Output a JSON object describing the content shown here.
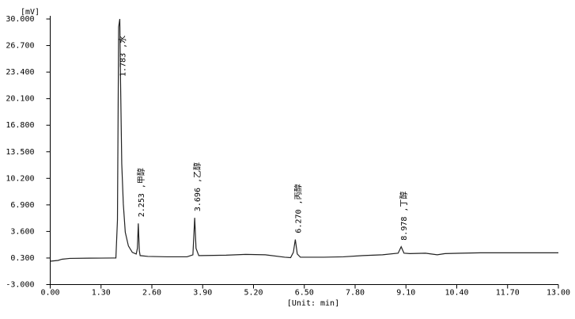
{
  "chart_data": {
    "type": "line",
    "y_label": "[mV]",
    "x_label": "[Unit: min]",
    "color": "#222222",
    "xlim": [
      0,
      13
    ],
    "ylim": [
      -3,
      30
    ],
    "xticks": [
      {
        "value": 0,
        "label": "0.00"
      },
      {
        "value": 1.3,
        "label": "1.30"
      },
      {
        "value": 2.6,
        "label": "2.60"
      },
      {
        "value": 3.9,
        "label": "3.90"
      },
      {
        "value": 5.2,
        "label": "5.20"
      },
      {
        "value": 6.5,
        "label": "6.50"
      },
      {
        "value": 7.8,
        "label": "7.80"
      },
      {
        "value": 9.1,
        "label": "9.10"
      },
      {
        "value": 10.4,
        "label": "10.40"
      },
      {
        "value": 11.7,
        "label": "11.70"
      },
      {
        "value": 13,
        "label": "13.00"
      }
    ],
    "yticks": [
      {
        "value": -3,
        "label": "-3.000"
      },
      {
        "value": 0.3,
        "label": "0.300"
      },
      {
        "value": 3.6,
        "label": "3.600"
      },
      {
        "value": 6.9,
        "label": "6.900"
      },
      {
        "value": 10.2,
        "label": "10.200"
      },
      {
        "value": 13.5,
        "label": "13.500"
      },
      {
        "value": 16.8,
        "label": "16.800"
      },
      {
        "value": 20.1,
        "label": "20.100"
      },
      {
        "value": 23.4,
        "label": "23.400"
      },
      {
        "value": 26.7,
        "label": "26.700"
      },
      {
        "value": 30,
        "label": "30.000"
      }
    ],
    "x": [
      0,
      0.2,
      0.3,
      0.5,
      1.0,
      1.6,
      1.68,
      1.72,
      1.75,
      1.78,
      1.8,
      1.83,
      1.87,
      1.92,
      2.0,
      2.1,
      2.2,
      2.23,
      2.253,
      2.28,
      2.3,
      2.5,
      3.0,
      3.5,
      3.65,
      3.696,
      3.73,
      3.8,
      4.5,
      5.0,
      5.5,
      6.0,
      6.15,
      6.22,
      6.27,
      6.32,
      6.4,
      7.0,
      7.5,
      8.0,
      8.5,
      8.9,
      8.978,
      9.05,
      9.2,
      9.6,
      9.9,
      10.1,
      10.5,
      11.0,
      12.0,
      13.0
    ],
    "values": [
      -0.1,
      0.0,
      0.15,
      0.25,
      0.28,
      0.3,
      0.3,
      5,
      29,
      30,
      22,
      12,
      7,
      3.5,
      1.8,
      1.0,
      0.8,
      1.5,
      4.6,
      1.2,
      0.6,
      0.5,
      0.45,
      0.45,
      0.7,
      5.3,
      1.5,
      0.6,
      0.65,
      0.75,
      0.7,
      0.4,
      0.35,
      1.0,
      2.6,
      0.8,
      0.4,
      0.4,
      0.45,
      0.6,
      0.7,
      0.9,
      1.7,
      0.9,
      0.85,
      0.9,
      0.7,
      0.85,
      0.9,
      0.95,
      0.95,
      0.95
    ],
    "annotations": [
      {
        "x": 1.783,
        "label": "1.783 ,水"
      },
      {
        "x": 2.253,
        "label": "2.253 ,甲醇"
      },
      {
        "x": 3.696,
        "label": "3.696 ,乙醇"
      },
      {
        "x": 6.27,
        "label": "6.270 ,丙醇"
      },
      {
        "x": 8.978,
        "label": "8.978 ,丁醇"
      }
    ]
  }
}
